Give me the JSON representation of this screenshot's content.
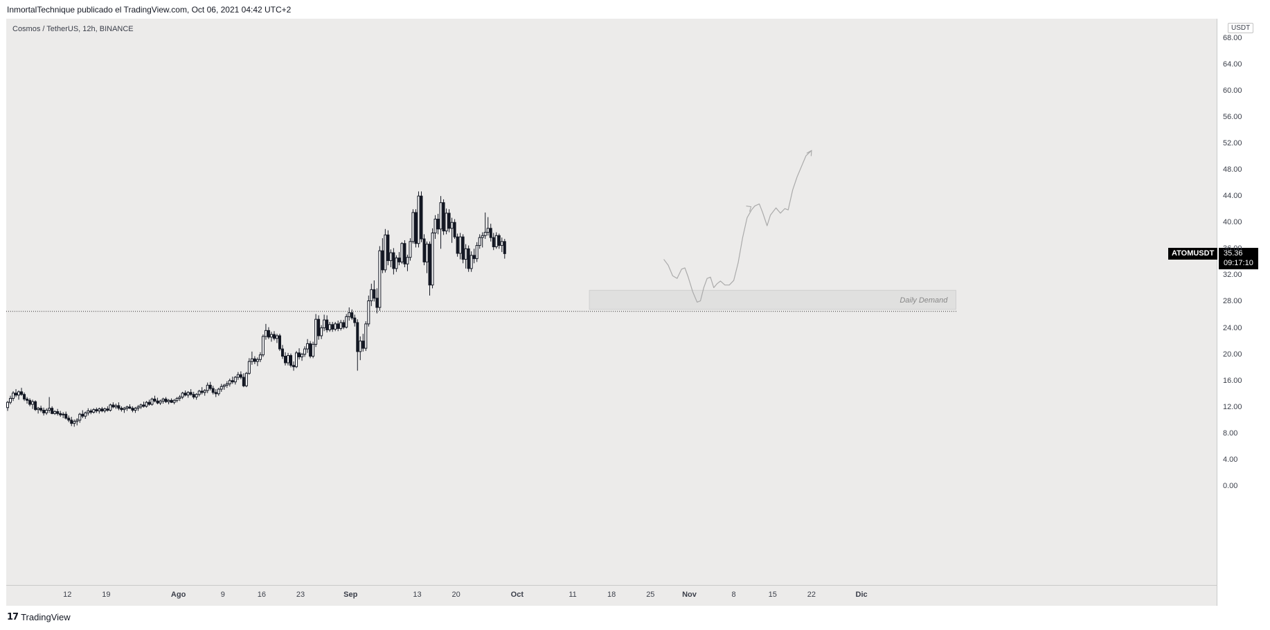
{
  "header": {
    "text": "InmortalTechnique publicado el TradingView.com, Oct 06, 2021 04:42 UTC+2"
  },
  "symbol": {
    "title": "Cosmos / TetherUS, 12h, BINANCE",
    "ticker": "ATOMUSDT",
    "price": "35.36",
    "countdown": "09:17:10"
  },
  "currency": "USDT",
  "footer": {
    "brand": "TradingView",
    "logo_icon": "tradingview-logo-icon"
  },
  "zone_label": "Daily Demand",
  "chart_data": {
    "type": "candlestick",
    "title": "Cosmos / TetherUS, 12h, BINANCE",
    "ylim": [
      -2,
      70
    ],
    "y_ticks": [
      "68.00",
      "64.00",
      "60.00",
      "56.00",
      "52.00",
      "48.00",
      "44.00",
      "40.00",
      "36.00",
      "32.00",
      "28.00",
      "24.00",
      "20.00",
      "16.00",
      "12.00",
      "8.00",
      "4.00",
      "0.00"
    ],
    "y_tick_values": [
      68,
      64,
      60,
      56,
      52,
      48,
      44,
      40,
      36,
      32,
      28,
      24,
      20,
      16,
      12,
      8,
      4,
      0
    ],
    "x_ticks": [
      "12",
      "19",
      "Ago",
      "9",
      "16",
      "23",
      "Sep",
      "13",
      "20",
      "Oct",
      "11",
      "18",
      "25",
      "Nov",
      "8",
      "15",
      "22",
      "Dic"
    ],
    "x_tick_days": [
      11,
      18,
      31,
      39,
      46,
      53,
      62,
      74,
      81,
      92,
      102,
      109,
      116,
      123,
      131,
      138,
      145,
      154
    ],
    "x_days_per_candle": 0.5,
    "x_start_day": 0,
    "current_price": 35.36,
    "horizontal_line": 26.6,
    "demand_zone": {
      "from_day": 105,
      "to_day": 171,
      "low": 26.9,
      "high": 29.8,
      "label": "Daily Demand"
    },
    "candles": [
      [
        12,
        13,
        11.5,
        12.8
      ],
      [
        12.8,
        13.8,
        12.5,
        13.4
      ],
      [
        13.4,
        14.5,
        13,
        14.2
      ],
      [
        14.2,
        14.8,
        13.6,
        13.9
      ],
      [
        13.9,
        14.6,
        13.2,
        14.4
      ],
      [
        14.4,
        15,
        13.8,
        14
      ],
      [
        14,
        14.3,
        13,
        13.3
      ],
      [
        13.3,
        13.6,
        12.6,
        13.1
      ],
      [
        13.1,
        13.4,
        12.2,
        12.5
      ],
      [
        12.5,
        13.2,
        11.8,
        12.9
      ],
      [
        12.9,
        13.1,
        11.5,
        11.7
      ],
      [
        11.7,
        12.1,
        11.1,
        11.9
      ],
      [
        11.9,
        12.3,
        11.3,
        11.6
      ],
      [
        11.6,
        12,
        10.8,
        11.2
      ],
      [
        11.2,
        11.9,
        10.9,
        11.6
      ],
      [
        11.6,
        13.6,
        11.2,
        11.9
      ],
      [
        11.9,
        12.2,
        11,
        11.1
      ],
      [
        11.1,
        11.6,
        10.9,
        11.4
      ],
      [
        11.4,
        11.8,
        10.8,
        11.1
      ],
      [
        11.1,
        11.5,
        10.6,
        10.9
      ],
      [
        10.9,
        11.3,
        10.4,
        11
      ],
      [
        11,
        11.4,
        10.2,
        10.4
      ],
      [
        10.4,
        10.8,
        9.8,
        10.1
      ],
      [
        10.1,
        10.6,
        9.2,
        9.6
      ],
      [
        9.6,
        10.2,
        9.1,
        9.9
      ],
      [
        9.9,
        10.4,
        9.3,
        10.1
      ],
      [
        10.1,
        11.2,
        9.7,
        11
      ],
      [
        11,
        11.6,
        10.4,
        10.7
      ],
      [
        10.7,
        11.4,
        10.3,
        11.2
      ],
      [
        11.2,
        11.9,
        10.8,
        11.5
      ],
      [
        11.5,
        11.8,
        11,
        11.3
      ],
      [
        11.3,
        11.9,
        11.1,
        11.7
      ],
      [
        11.7,
        12,
        11.2,
        11.5
      ],
      [
        11.5,
        12,
        11.1,
        11.8
      ],
      [
        11.8,
        12.1,
        11.3,
        11.5
      ],
      [
        11.5,
        12,
        11.2,
        11.8
      ],
      [
        11.8,
        12.2,
        11.4,
        11.6
      ],
      [
        11.6,
        12.6,
        11.4,
        12.4
      ],
      [
        12.4,
        12.8,
        11.9,
        12.1
      ],
      [
        12.1,
        12.6,
        11.8,
        12.3
      ],
      [
        12.3,
        12.8,
        11.6,
        11.9
      ],
      [
        11.9,
        12.2,
        11.4,
        11.7
      ],
      [
        11.7,
        12.1,
        11.2,
        11.9
      ],
      [
        11.9,
        12.3,
        11.5,
        12.1
      ],
      [
        12.1,
        12.5,
        11.8,
        11.9
      ],
      [
        11.9,
        12.2,
        11.3,
        11.6
      ],
      [
        11.6,
        12.1,
        11.2,
        11.9
      ],
      [
        11.9,
        12.4,
        11.5,
        12.1
      ],
      [
        12.1,
        12.6,
        11.8,
        12.4
      ],
      [
        12.4,
        12.9,
        12,
        12.2
      ],
      [
        12.2,
        13,
        12,
        12.8
      ],
      [
        12.8,
        13.2,
        12.3,
        12.5
      ],
      [
        12.5,
        13.5,
        12.3,
        13.3
      ],
      [
        13.3,
        13.8,
        12.8,
        13
      ],
      [
        13,
        13.5,
        12.5,
        12.7
      ],
      [
        12.7,
        13.2,
        12.4,
        13
      ],
      [
        13,
        13.5,
        12.6,
        13.3
      ],
      [
        13.3,
        13.6,
        12.7,
        12.9
      ],
      [
        12.9,
        13.3,
        12.5,
        13.1
      ],
      [
        13.1,
        13.4,
        12.7,
        12.8
      ],
      [
        12.8,
        13.3,
        12.5,
        13.1
      ],
      [
        13.1,
        13.6,
        12.8,
        13.4
      ],
      [
        13.4,
        13.9,
        13,
        13.6
      ],
      [
        13.6,
        14.4,
        13.3,
        14.2
      ],
      [
        14.2,
        14.6,
        13.7,
        13.9
      ],
      [
        13.9,
        14.5,
        13.5,
        14.3
      ],
      [
        14.3,
        14.8,
        13.8,
        14
      ],
      [
        14,
        14.4,
        13.3,
        13.6
      ],
      [
        13.6,
        14.2,
        13.2,
        14
      ],
      [
        14,
        14.7,
        13.7,
        14.5
      ],
      [
        14.5,
        15.1,
        14,
        14.3
      ],
      [
        14.3,
        14.8,
        13.8,
        14.6
      ],
      [
        14.6,
        15.8,
        14.2,
        15.4
      ],
      [
        15.4,
        15.9,
        14.6,
        14.9
      ],
      [
        14.9,
        15.3,
        14,
        14.3
      ],
      [
        14.3,
        14.8,
        13.6,
        14.1
      ],
      [
        14.1,
        15,
        13.8,
        14.8
      ],
      [
        14.8,
        15.6,
        14.4,
        15.2
      ],
      [
        15.2,
        15.6,
        14.7,
        15.4
      ],
      [
        15.4,
        16,
        15,
        15.6
      ],
      [
        15.6,
        16.4,
        15.2,
        16.1
      ],
      [
        16.1,
        16.7,
        15.6,
        15.9
      ],
      [
        15.9,
        16.8,
        15.5,
        16.6
      ],
      [
        16.6,
        17.4,
        16.2,
        17
      ],
      [
        17,
        17.5,
        16.3,
        16.6
      ],
      [
        16.6,
        17.2,
        15.1,
        15.3
      ],
      [
        15.3,
        17.4,
        15.1,
        17.2
      ],
      [
        17.2,
        19.5,
        17,
        19
      ],
      [
        19,
        20.5,
        18.5,
        19.4
      ],
      [
        19.4,
        19.8,
        18.6,
        19
      ],
      [
        19,
        19.6,
        18.3,
        19.3
      ],
      [
        19.3,
        20.4,
        18.9,
        20
      ],
      [
        20,
        23.1,
        19.7,
        22.8
      ],
      [
        22.8,
        24.7,
        22.3,
        23.7
      ],
      [
        23.7,
        24.2,
        22.4,
        22.7
      ],
      [
        22.7,
        23.5,
        22,
        23.1
      ],
      [
        23.1,
        23.6,
        22.2,
        22.5
      ],
      [
        22.5,
        23.2,
        21.8,
        22.9
      ],
      [
        22.9,
        23.2,
        20.6,
        20.9
      ],
      [
        20.9,
        21.5,
        19.4,
        19.8
      ],
      [
        19.8,
        20.4,
        18.4,
        18.8
      ],
      [
        18.8,
        20.3,
        18.4,
        19.9
      ],
      [
        19.9,
        20.2,
        18.1,
        18.4
      ],
      [
        18.4,
        19,
        17.6,
        18.2
      ],
      [
        18.2,
        20.6,
        18,
        20.3
      ],
      [
        20.3,
        21,
        19.3,
        19.7
      ],
      [
        19.7,
        20.3,
        19.1,
        20.1
      ],
      [
        20.1,
        21.3,
        19.7,
        20.9
      ],
      [
        20.9,
        22.4,
        20.3,
        21.7
      ],
      [
        21.7,
        22.1,
        19.5,
        19.8
      ],
      [
        19.8,
        22,
        19.5,
        21.6
      ],
      [
        21.6,
        26.2,
        21.2,
        25.4
      ],
      [
        25.4,
        26,
        22.3,
        22.9
      ],
      [
        22.9,
        24.5,
        22.4,
        24.1
      ],
      [
        24.1,
        26.1,
        23.6,
        25.3
      ],
      [
        25.3,
        26,
        23.4,
        23.8
      ],
      [
        23.8,
        25,
        23.5,
        24.6
      ],
      [
        24.6,
        25,
        23.5,
        23.9
      ],
      [
        23.9,
        25,
        23.6,
        24.7
      ],
      [
        24.7,
        25.2,
        23.6,
        24
      ],
      [
        24,
        25.3,
        23.7,
        24.9
      ],
      [
        24.9,
        25.3,
        23.9,
        24.2
      ],
      [
        24.2,
        26.2,
        24,
        25.8
      ],
      [
        25.8,
        27.2,
        25.2,
        26.4
      ],
      [
        26.4,
        26.9,
        25.3,
        25.6
      ],
      [
        25.6,
        26.1,
        24.3,
        24.9
      ],
      [
        24.9,
        25.4,
        17.6,
        20.5
      ],
      [
        20.5,
        22.8,
        19.2,
        22.1
      ],
      [
        22.1,
        23.2,
        20.5,
        21
      ],
      [
        21,
        25.1,
        20.6,
        24.7
      ],
      [
        24.7,
        29,
        24.3,
        28.2
      ],
      [
        28.2,
        30.8,
        27.4,
        29.9
      ],
      [
        29.9,
        31.3,
        28.1,
        28.6
      ],
      [
        28.6,
        30.1,
        26.3,
        27.2
      ],
      [
        27.2,
        36.5,
        26.7,
        35.8
      ],
      [
        35.8,
        37.7,
        32.4,
        32.9
      ],
      [
        32.9,
        39.1,
        32.5,
        38.2
      ],
      [
        38.2,
        38.9,
        33.6,
        34.3
      ],
      [
        34.3,
        36,
        33.3,
        35.5
      ],
      [
        35.5,
        36.2,
        32.2,
        33.1
      ],
      [
        33.1,
        35.1,
        32.6,
        34.7
      ],
      [
        34.7,
        35.6,
        33.6,
        34.1
      ],
      [
        34.1,
        37.1,
        33.8,
        36.9
      ],
      [
        36.9,
        37.4,
        33.3,
        33.8
      ],
      [
        33.8,
        35.2,
        32.7,
        34.8
      ],
      [
        34.8,
        37.7,
        34.3,
        37.2
      ],
      [
        37.2,
        42.1,
        36.9,
        41.6
      ],
      [
        41.6,
        42.1,
        36.3,
        36.9
      ],
      [
        36.9,
        44.8,
        36.3,
        44.1
      ],
      [
        44.1,
        44.8,
        37.1,
        37.6
      ],
      [
        37.6,
        38.3,
        33.6,
        34.1
      ],
      [
        34.1,
        37.2,
        32.4,
        36.8
      ],
      [
        36.8,
        37.2,
        29,
        30.6
      ],
      [
        30.6,
        39.2,
        30.1,
        38.5
      ],
      [
        38.5,
        41.2,
        37.6,
        40.6
      ],
      [
        40.6,
        41.4,
        38.3,
        39.1
      ],
      [
        39.1,
        44.1,
        36.1,
        43.1
      ],
      [
        43.1,
        43.6,
        38.2,
        38.8
      ],
      [
        38.8,
        42.2,
        38.3,
        41.5
      ],
      [
        41.5,
        42.1,
        38.6,
        39.2
      ],
      [
        39.2,
        40.8,
        37,
        40.1
      ],
      [
        40.1,
        40.6,
        37.6,
        37.9
      ],
      [
        37.9,
        38.4,
        34.9,
        35.4
      ],
      [
        35.4,
        38.5,
        34.5,
        37.9
      ],
      [
        37.9,
        38.3,
        33.9,
        34.5
      ],
      [
        34.5,
        36.8,
        33.1,
        36.1
      ],
      [
        36.1,
        36.6,
        32.6,
        33.1
      ],
      [
        33.1,
        35.7,
        32.6,
        35.1
      ],
      [
        35.1,
        36.1,
        33.9,
        34.6
      ],
      [
        34.6,
        37.1,
        34.1,
        36.6
      ],
      [
        36.6,
        38.3,
        36.1,
        37.8
      ],
      [
        37.8,
        38.6,
        36.3,
        38.1
      ],
      [
        38.1,
        41.6,
        37.6,
        38.6
      ],
      [
        38.6,
        40.9,
        38.1,
        39.2
      ],
      [
        39.2,
        39.9,
        37.2,
        37.8
      ],
      [
        37.8,
        38.5,
        35.9,
        36.4
      ],
      [
        36.4,
        38.6,
        36.1,
        38.1
      ],
      [
        38.1,
        38.4,
        36.1,
        36.6
      ],
      [
        36.6,
        37.8,
        35.6,
        37.2
      ],
      [
        37.2,
        37.6,
        34.6,
        35.36
      ]
    ],
    "projection_path": [
      [
        118.4,
        34.5
      ],
      [
        119.2,
        33.6
      ],
      [
        120.0,
        32.0
      ],
      [
        120.8,
        31.6
      ],
      [
        121.6,
        33.0
      ],
      [
        122.2,
        33.2
      ],
      [
        122.8,
        31.8
      ],
      [
        123.6,
        29.6
      ],
      [
        124.4,
        28.0
      ],
      [
        125.0,
        28.2
      ],
      [
        125.6,
        30.2
      ],
      [
        126.2,
        31.6
      ],
      [
        126.8,
        31.8
      ],
      [
        127.4,
        30.2
      ],
      [
        128.0,
        30.8
      ],
      [
        128.6,
        31.2
      ],
      [
        129.4,
        30.6
      ],
      [
        130.2,
        30.6
      ],
      [
        131.0,
        31.3
      ],
      [
        131.8,
        34.0
      ],
      [
        132.6,
        37.8
      ],
      [
        133.4,
        40.8
      ],
      [
        134.2,
        42.0
      ],
      [
        134.8,
        42.6
      ],
      [
        135.6,
        42.9
      ],
      [
        136.2,
        41.6
      ],
      [
        137.0,
        39.6
      ],
      [
        137.6,
        41.2
      ],
      [
        138.6,
        42.3
      ],
      [
        139.4,
        41.5
      ],
      [
        140.2,
        42.2
      ],
      [
        140.8,
        42.0
      ],
      [
        141.6,
        45.0
      ],
      [
        142.4,
        47.0
      ],
      [
        143.2,
        48.6
      ],
      [
        144.0,
        50.2
      ],
      [
        145.0,
        51.0
      ]
    ]
  },
  "colors": {
    "chart_bg": "#ecebea",
    "candle": "#131722",
    "line": "#555555",
    "projection": "#aaaaaa",
    "zone_fill": "#e0e0df",
    "zone_border": "#cfcfcf"
  }
}
